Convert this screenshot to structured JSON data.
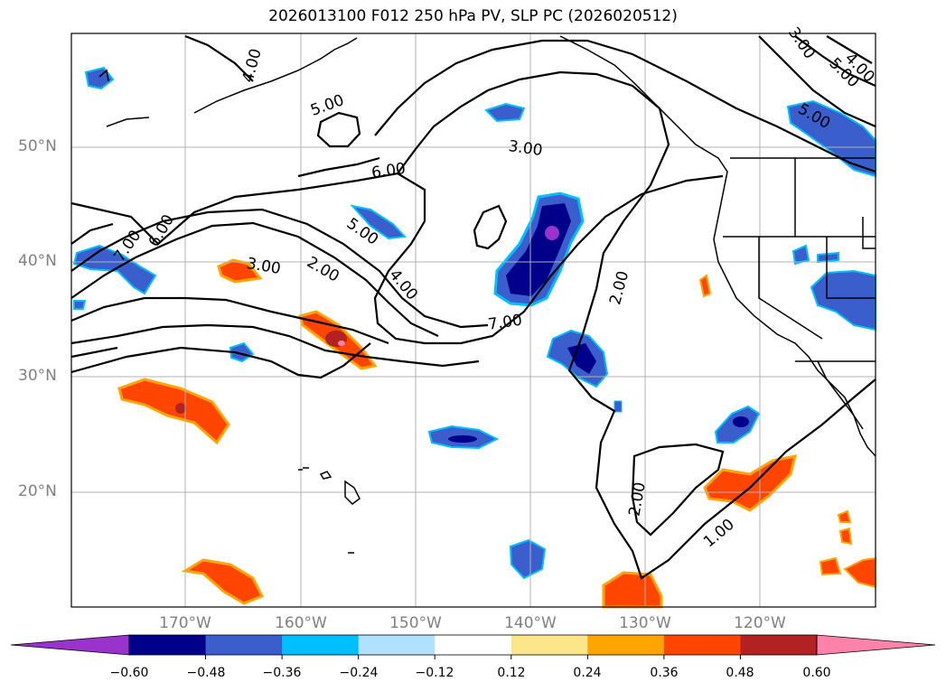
{
  "title": "2026013100 F012 250 hPa PV, SLP PC (2026020512)",
  "map": {
    "lon_labels": [
      "170°W",
      "160°W",
      "150°W",
      "140°W",
      "130°W",
      "120°W"
    ],
    "lat_labels": [
      "50°N",
      "40°N",
      "30°N",
      "20°N"
    ],
    "contour_labels": [
      "4.00",
      "5.00",
      "6.00",
      "7.00",
      "6.00",
      "3.00",
      "2.00",
      "5.00",
      "4.00",
      "3.00",
      "7.00",
      "2.00",
      "2.00",
      "1.00",
      "5.00",
      "4.00",
      "5.00",
      "3.00"
    ]
  },
  "colorbar": {
    "colors": [
      "#9933cc",
      "#00008b",
      "#3a5fcd",
      "#00bfff",
      "#b0e2ff",
      "#ffffff",
      "#fde68a",
      "#ffa500",
      "#ff4500",
      "#b22222",
      "#ff82ab"
    ],
    "ticks": [
      "−0.60",
      "−0.48",
      "−0.36",
      "−0.24",
      "−0.12",
      "0.12",
      "0.24",
      "0.36",
      "0.48",
      "0.60"
    ]
  }
}
